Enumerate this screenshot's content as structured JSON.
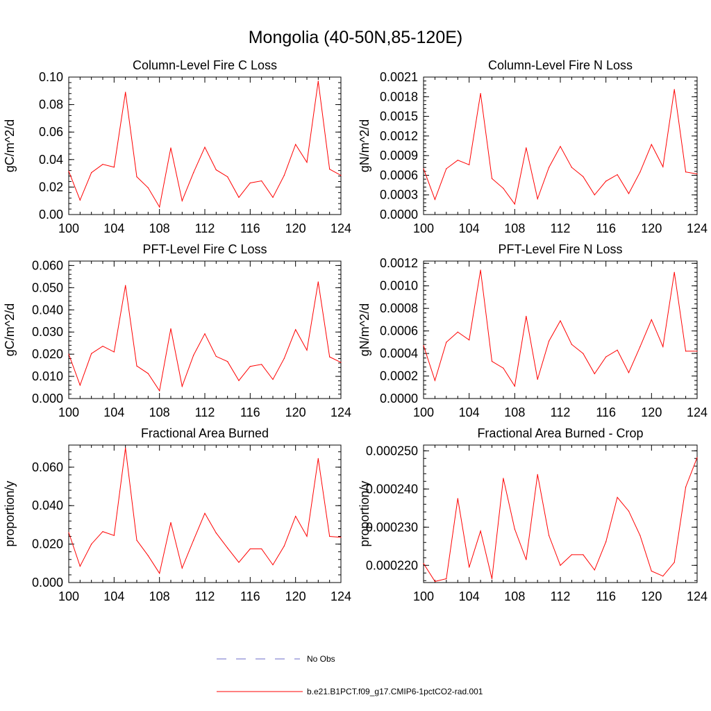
{
  "figure": {
    "title": "Mongolia (40-50N,85-120E)"
  },
  "legend": {
    "items": [
      {
        "label": "No Obs",
        "color": "#6b6bc8",
        "style": "dashed"
      },
      {
        "label": "b.e21.B1PCT.f09_g17.CMIP6-1pctCO2-rad.001",
        "color": "#ff0000",
        "style": "solid"
      }
    ]
  },
  "chart_data": [
    {
      "type": "line",
      "title": "Column-Level Fire C Loss",
      "ylabel": "gC/m^2/d",
      "xlim": [
        100,
        124
      ],
      "ylim": [
        0,
        0.1
      ],
      "xticks": [
        100,
        104,
        108,
        112,
        116,
        120,
        124
      ],
      "xtick_labels": [
        "100",
        "104",
        "108",
        "112",
        "116",
        "120",
        "124"
      ],
      "yticks": [
        0,
        0.02,
        0.04,
        0.06,
        0.08,
        0.1
      ],
      "ytick_labels": [
        "0.00",
        "0.02",
        "0.04",
        "0.06",
        "0.08",
        "0.10"
      ],
      "x": [
        100,
        101,
        102,
        103,
        104,
        105,
        106,
        107,
        108,
        109,
        110,
        111,
        112,
        113,
        114,
        115,
        116,
        117,
        118,
        119,
        120,
        121,
        122,
        123,
        124
      ],
      "series": [
        {
          "name": "b.e21.B1PCT.f09_g17.CMIP6-1pctCO2-rad.001",
          "color": "#ff0000",
          "values": [
            0.0315,
            0.0105,
            0.0305,
            0.0365,
            0.0345,
            0.089,
            0.0275,
            0.0195,
            0.0055,
            0.0485,
            0.01,
            0.0305,
            0.049,
            0.0325,
            0.0275,
            0.0125,
            0.023,
            0.0245,
            0.0125,
            0.0285,
            0.051,
            0.038,
            0.097,
            0.033,
            0.0285
          ]
        }
      ]
    },
    {
      "type": "line",
      "title": "Column-Level Fire N Loss",
      "ylabel": "gN/m^2/d",
      "xlim": [
        100,
        124
      ],
      "ylim": [
        0,
        0.0021
      ],
      "xticks": [
        100,
        104,
        108,
        112,
        116,
        120,
        124
      ],
      "xtick_labels": [
        "100",
        "104",
        "108",
        "112",
        "116",
        "120",
        "124"
      ],
      "yticks": [
        0,
        0.0003,
        0.0006,
        0.0009,
        0.0012,
        0.0015,
        0.0018,
        0.0021
      ],
      "ytick_labels": [
        "0.0000",
        "0.0003",
        "0.0006",
        "0.0009",
        "0.0012",
        "0.0015",
        "0.0018",
        "0.0021"
      ],
      "x": [
        100,
        101,
        102,
        103,
        104,
        105,
        106,
        107,
        108,
        109,
        110,
        111,
        112,
        113,
        114,
        115,
        116,
        117,
        118,
        119,
        120,
        121,
        122,
        123,
        124
      ],
      "series": [
        {
          "name": "b.e21.B1PCT.f09_g17.CMIP6-1pctCO2-rad.001",
          "color": "#ff0000",
          "values": [
            0.0007,
            0.00023,
            0.0007,
            0.00083,
            0.00076,
            0.00185,
            0.00055,
            0.0004,
            0.00016,
            0.00102,
            0.00024,
            0.00072,
            0.00104,
            0.00072,
            0.00058,
            0.0003,
            0.00051,
            0.00061,
            0.00032,
            0.00065,
            0.00107,
            0.00073,
            0.00191,
            0.00065,
            0.00062
          ]
        }
      ]
    },
    {
      "type": "line",
      "title": "PFT-Level Fire C Loss",
      "ylabel": "gC/m^2/d",
      "xlim": [
        100,
        124
      ],
      "ylim": [
        0,
        0.062
      ],
      "xticks": [
        100,
        104,
        108,
        112,
        116,
        120,
        124
      ],
      "xtick_labels": [
        "100",
        "104",
        "108",
        "112",
        "116",
        "120",
        "124"
      ],
      "yticks": [
        0,
        0.01,
        0.02,
        0.03,
        0.04,
        0.05,
        0.06
      ],
      "ytick_labels": [
        "0.000",
        "0.010",
        "0.020",
        "0.030",
        "0.040",
        "0.050",
        "0.060"
      ],
      "x": [
        100,
        101,
        102,
        103,
        104,
        105,
        106,
        107,
        108,
        109,
        110,
        111,
        112,
        113,
        114,
        115,
        116,
        117,
        118,
        119,
        120,
        121,
        122,
        123,
        124
      ],
      "series": [
        {
          "name": "b.e21.B1PCT.f09_g17.CMIP6-1pctCO2-rad.001",
          "color": "#ff0000",
          "values": [
            0.02,
            0.006,
            0.0203,
            0.0236,
            0.021,
            0.051,
            0.0147,
            0.0113,
            0.0035,
            0.0315,
            0.0055,
            0.0195,
            0.0292,
            0.019,
            0.0167,
            0.0081,
            0.0145,
            0.0154,
            0.0086,
            0.0181,
            0.0311,
            0.0218,
            0.0526,
            0.0188,
            0.0163
          ]
        }
      ]
    },
    {
      "type": "line",
      "title": "PFT-Level Fire N Loss",
      "ylabel": "gN/m^2/d",
      "xlim": [
        100,
        124
      ],
      "ylim": [
        0,
        0.00122
      ],
      "xticks": [
        100,
        104,
        108,
        112,
        116,
        120,
        124
      ],
      "xtick_labels": [
        "100",
        "104",
        "108",
        "112",
        "116",
        "120",
        "124"
      ],
      "yticks": [
        0,
        0.0002,
        0.0004,
        0.0006,
        0.0008,
        0.001,
        0.0012
      ],
      "ytick_labels": [
        "0.0000",
        "0.0002",
        "0.0004",
        "0.0006",
        "0.0008",
        "0.0010",
        "0.0012"
      ],
      "x": [
        100,
        101,
        102,
        103,
        104,
        105,
        106,
        107,
        108,
        109,
        110,
        111,
        112,
        113,
        114,
        115,
        116,
        117,
        118,
        119,
        120,
        121,
        122,
        123,
        124
      ],
      "series": [
        {
          "name": "b.e21.B1PCT.f09_g17.CMIP6-1pctCO2-rad.001",
          "color": "#ff0000",
          "values": [
            0.00047,
            0.00016,
            0.0005,
            0.00059,
            0.00052,
            0.00114,
            0.00033,
            0.00027,
            0.00011,
            0.00073,
            0.00017,
            0.00051,
            0.00069,
            0.00048,
            0.0004,
            0.00022,
            0.00037,
            0.00043,
            0.00023,
            0.00046,
            0.0007,
            0.00046,
            0.00112,
            0.00042,
            0.00042
          ]
        }
      ]
    },
    {
      "type": "line",
      "title": "Fractional Area Burned",
      "ylabel": "proportion/y",
      "xlim": [
        100,
        124
      ],
      "ylim": [
        0,
        0.0715
      ],
      "xticks": [
        100,
        104,
        108,
        112,
        116,
        120,
        124
      ],
      "xtick_labels": [
        "100",
        "104",
        "108",
        "112",
        "116",
        "120",
        "124"
      ],
      "yticks": [
        0,
        0.02,
        0.04,
        0.06
      ],
      "ytick_labels": [
        "0.000",
        "0.020",
        "0.040",
        "0.060"
      ],
      "x": [
        100,
        101,
        102,
        103,
        104,
        105,
        106,
        107,
        108,
        109,
        110,
        111,
        112,
        113,
        114,
        115,
        116,
        117,
        118,
        119,
        120,
        121,
        122,
        123,
        124
      ],
      "series": [
        {
          "name": "b.e21.B1PCT.f09_g17.CMIP6-1pctCO2-rad.001",
          "color": "#ff0000",
          "values": [
            0.026,
            0.0085,
            0.02,
            0.0265,
            0.0245,
            0.07,
            0.022,
            0.014,
            0.0048,
            0.0312,
            0.0075,
            0.022,
            0.036,
            0.0258,
            0.018,
            0.0105,
            0.0175,
            0.0175,
            0.0092,
            0.019,
            0.0345,
            0.024,
            0.0645,
            0.024,
            0.0235
          ]
        }
      ]
    },
    {
      "type": "line",
      "title": "Fractional Area Burned - Crop",
      "ylabel": "proportion/y",
      "xlim": [
        100,
        124
      ],
      "ylim": [
        0.0002155,
        0.0002515
      ],
      "xticks": [
        100,
        104,
        108,
        112,
        116,
        120,
        124
      ],
      "xtick_labels": [
        "100",
        "104",
        "108",
        "112",
        "116",
        "120",
        "124"
      ],
      "yticks": [
        0.00022,
        0.00023,
        0.00024,
        0.00025
      ],
      "ytick_labels": [
        "0.000220",
        "0.000230",
        "0.000240",
        "0.000250"
      ],
      "x": [
        100,
        101,
        102,
        103,
        104,
        105,
        106,
        107,
        108,
        109,
        110,
        111,
        112,
        113,
        114,
        115,
        116,
        117,
        118,
        119,
        120,
        121,
        122,
        123,
        124
      ],
      "series": [
        {
          "name": "b.e21.B1PCT.f09_g17.CMIP6-1pctCO2-rad.001",
          "color": "#ff0000",
          "values": [
            0.0002205,
            0.0002158,
            0.0002165,
            0.0002375,
            0.0002195,
            0.000229,
            0.0002165,
            0.0002428,
            0.0002295,
            0.0002215,
            0.0002438,
            0.0002278,
            0.00022,
            0.0002228,
            0.0002228,
            0.0002188,
            0.0002262,
            0.0002378,
            0.0002342,
            0.0002278,
            0.0002185,
            0.0002172,
            0.0002208,
            0.0002405,
            0.0002482
          ]
        }
      ]
    }
  ]
}
